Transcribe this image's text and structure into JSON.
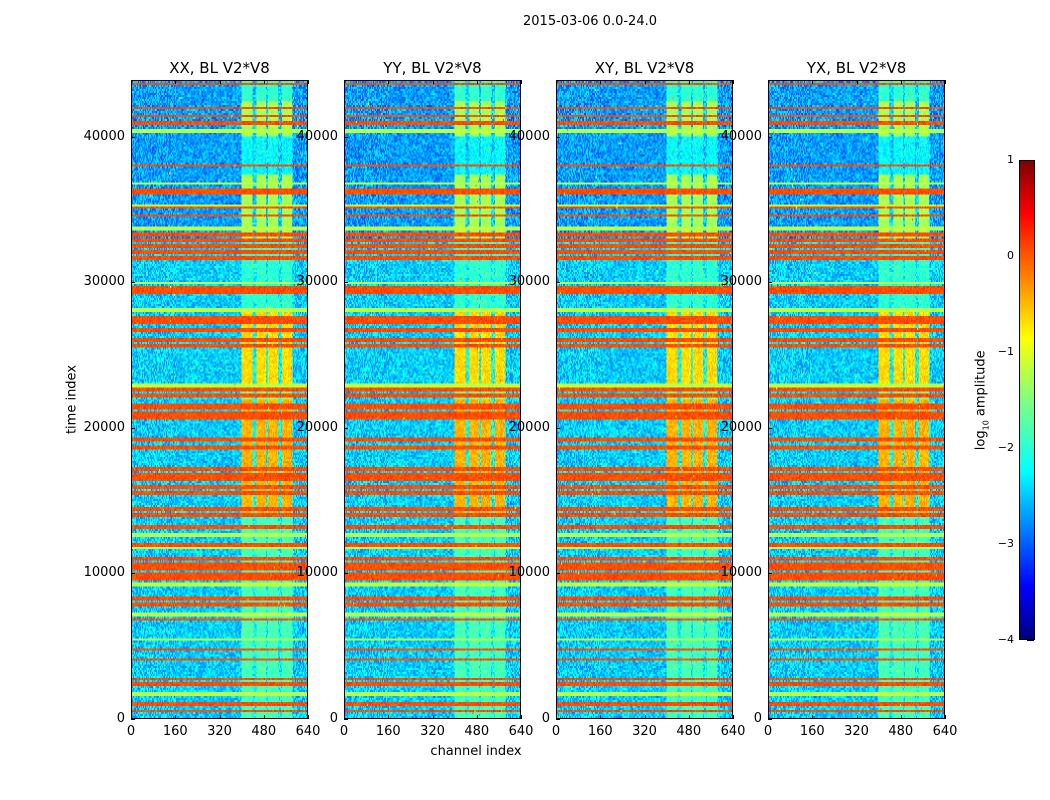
{
  "chart_data": {
    "type": "heatmap",
    "title": "2015-03-06 0.0-24.0",
    "xlabel": "channel index",
    "ylabel": "time index",
    "xlim": [
      0,
      640
    ],
    "ylim": [
      0,
      43900
    ],
    "xticks": [
      "0",
      "160",
      "320",
      "480",
      "640"
    ],
    "yticks": [
      "0",
      "10000",
      "20000",
      "30000",
      "40000"
    ],
    "xtick_values": [
      0,
      160,
      320,
      480,
      640
    ],
    "ytick_values": [
      0,
      10000,
      20000,
      30000,
      40000
    ],
    "colormap": "jet",
    "colorbar": {
      "label_prefix": "log",
      "label_sub": "10",
      "label_suffix": " amplitude",
      "range": [
        -4,
        1
      ],
      "ticks": [
        "−4",
        "−3",
        "−2",
        "−1",
        "0",
        "1"
      ],
      "tick_values": [
        -4,
        -3,
        -2,
        -1,
        0,
        1
      ]
    },
    "panels": [
      {
        "title": "XX, BL V2*V8",
        "seed": 11
      },
      {
        "title": "YY, BL V2*V8",
        "seed": 23
      },
      {
        "title": "XY, BL V2*V8",
        "seed": 37
      },
      {
        "title": "YX, BL V2*V8",
        "seed": 51
      }
    ],
    "background_level": -2.6,
    "strong_rows_time_index": [
      43700,
      42060,
      41510,
      41030,
      38080,
      36360,
      36150,
      35190,
      34640,
      33330,
      32920,
      32510,
      32100,
      31680,
      29620,
      29350,
      27560,
      27290,
      26730,
      26050,
      25700,
      22610,
      22270,
      21580,
      21380,
      21030,
      20690,
      19180,
      18700,
      17110,
      16770,
      16430,
      15950,
      15460,
      14360,
      13950,
      13130,
      11960,
      10930,
      10580,
      10240,
      9900,
      9550,
      8180,
      7830,
      6800,
      4740,
      4050,
      2680,
      2340,
      960,
      480
    ],
    "strong_row_level": 0.0,
    "medium_rows_time_index": [
      40480,
      36840,
      35330,
      33750,
      29970,
      28110,
      22960,
      12650,
      11750,
      9210,
      7150,
      5430,
      1650
    ],
    "medium_row_level": -1.2,
    "channel_blocks": [
      [
        400,
        440
      ],
      [
        455,
        490
      ],
      [
        500,
        535
      ],
      [
        548,
        585
      ]
    ],
    "block_levels_by_time": [
      {
        "from": 0,
        "to": 14000,
        "level": -1.8
      },
      {
        "from": 14000,
        "to": 22000,
        "level": -0.5
      },
      {
        "from": 22000,
        "to": 23000,
        "level": -1.5
      },
      {
        "from": 23000,
        "to": 28000,
        "level": -0.7
      },
      {
        "from": 28000,
        "to": 33000,
        "level": -2.0
      },
      {
        "from": 33000,
        "to": 37500,
        "level": -1.3
      },
      {
        "from": 37500,
        "to": 40000,
        "level": -2.2
      },
      {
        "from": 40000,
        "to": 42500,
        "level": -1.3
      },
      {
        "from": 42500,
        "to": 43900,
        "level": -1.9
      }
    ]
  }
}
